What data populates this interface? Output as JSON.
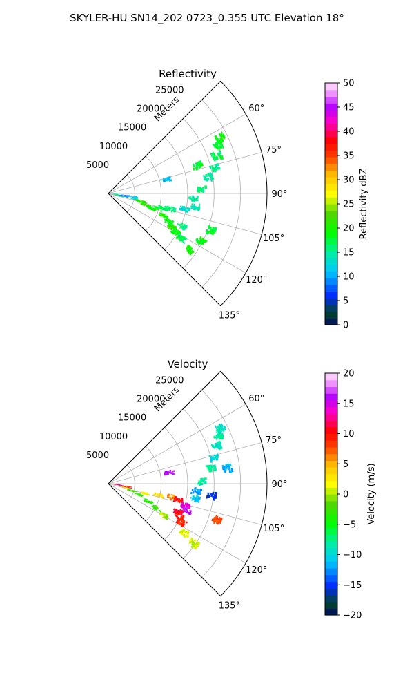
{
  "figure": {
    "suptitle": "SKYLER-HU  SN14_202  0723_0.355 UTC Elevation 18°"
  },
  "chart_data": [
    {
      "type": "polar-sector-heatmap",
      "title": "Reflectivity",
      "radial_axis_label": "Meters",
      "radial_ticks": [
        "5000",
        "10000",
        "15000",
        "20000",
        "25000"
      ],
      "radial_range": [
        0,
        30000
      ],
      "angle_ticks": [
        "60°",
        "75°",
        "90°",
        "105°",
        "120°",
        "135°"
      ],
      "angle_range_deg": [
        45,
        135
      ],
      "grid": true,
      "colorbar": {
        "label": "Reflectivity dBZ",
        "range": [
          0,
          50
        ],
        "ticks": [
          "0",
          "5",
          "10",
          "15",
          "20",
          "25",
          "30",
          "35",
          "40",
          "45",
          "50"
        ]
      },
      "cells": [
        {
          "az": 95,
          "r": 1200,
          "v": 15
        },
        {
          "az": 98,
          "r": 1500,
          "v": 14
        },
        {
          "az": 101,
          "r": 1800,
          "v": 16
        },
        {
          "az": 96,
          "r": 3200,
          "v": 8
        },
        {
          "az": 99,
          "r": 2800,
          "v": 9
        },
        {
          "az": 97,
          "r": 4500,
          "v": 12
        },
        {
          "az": 101,
          "r": 5000,
          "v": 13
        },
        {
          "az": 103,
          "r": 6000,
          "v": 21
        },
        {
          "az": 105,
          "r": 6500,
          "v": 20
        },
        {
          "az": 107,
          "r": 7500,
          "v": 22
        },
        {
          "az": 108,
          "r": 8500,
          "v": 19
        },
        {
          "az": 106,
          "r": 9500,
          "v": 18
        },
        {
          "az": 104,
          "r": 10500,
          "v": 17
        },
        {
          "az": 103,
          "r": 12000,
          "v": 16
        },
        {
          "az": 111,
          "r": 11000,
          "v": 20
        },
        {
          "az": 114,
          "r": 12500,
          "v": 18
        },
        {
          "az": 117,
          "r": 13500,
          "v": 21
        },
        {
          "az": 119,
          "r": 14500,
          "v": 19
        },
        {
          "az": 121,
          "r": 16000,
          "v": 17
        },
        {
          "az": 113,
          "r": 15000,
          "v": 16
        },
        {
          "az": 101,
          "r": 14500,
          "v": 13
        },
        {
          "az": 98,
          "r": 16500,
          "v": 14
        },
        {
          "az": 93,
          "r": 16000,
          "v": 15
        },
        {
          "az": 87,
          "r": 17500,
          "v": 16
        },
        {
          "az": 80,
          "r": 19000,
          "v": 15
        },
        {
          "az": 76,
          "r": 20500,
          "v": 16
        },
        {
          "az": 70,
          "r": 21500,
          "v": 17
        },
        {
          "az": 66,
          "r": 22500,
          "v": 18
        },
        {
          "az": 63,
          "r": 23500,
          "v": 19
        },
        {
          "az": 72,
          "r": 17500,
          "v": 18
        },
        {
          "az": 124,
          "r": 18500,
          "v": 20
        },
        {
          "az": 116,
          "r": 19500,
          "v": 19
        },
        {
          "az": 109,
          "r": 20500,
          "v": 18
        },
        {
          "az": 76,
          "r": 11000,
          "v": 11
        }
      ]
    },
    {
      "type": "polar-sector-heatmap",
      "title": "Velocity",
      "radial_axis_label": "Meters",
      "radial_ticks": [
        "5000",
        "10000",
        "15000",
        "20000",
        "25000"
      ],
      "radial_range": [
        0,
        30000
      ],
      "angle_ticks": [
        "60°",
        "75°",
        "90°",
        "105°",
        "120°",
        "135°"
      ],
      "angle_range_deg": [
        45,
        135
      ],
      "grid": true,
      "colorbar": {
        "label": "Velocity (m/s)",
        "range": [
          -20,
          20
        ],
        "ticks": [
          "−20",
          "−15",
          "−10",
          "−5",
          "0",
          "5",
          "10",
          "15",
          "20"
        ]
      },
      "cells": [
        {
          "az": 95,
          "r": 1500,
          "v": 11
        },
        {
          "az": 98,
          "r": 2000,
          "v": 13
        },
        {
          "az": 99,
          "r": 3500,
          "v": 9
        },
        {
          "az": 103,
          "r": 3000,
          "v": 1
        },
        {
          "az": 106,
          "r": 4500,
          "v": -2
        },
        {
          "az": 109,
          "r": 6000,
          "v": -3
        },
        {
          "az": 113,
          "r": 8000,
          "v": -4
        },
        {
          "az": 116,
          "r": 10000,
          "v": -3
        },
        {
          "az": 119,
          "r": 12000,
          "v": 0
        },
        {
          "az": 104,
          "r": 7000,
          "v": 2
        },
        {
          "az": 102,
          "r": 9500,
          "v": 3
        },
        {
          "az": 101,
          "r": 12000,
          "v": 6
        },
        {
          "az": 102,
          "r": 13500,
          "v": 10
        },
        {
          "az": 105,
          "r": 15000,
          "v": 14
        },
        {
          "az": 108,
          "r": 15500,
          "v": 16
        },
        {
          "az": 111,
          "r": 14000,
          "v": 11
        },
        {
          "az": 114,
          "r": 14500,
          "v": 10
        },
        {
          "az": 117,
          "r": 15500,
          "v": 9
        },
        {
          "az": 122,
          "r": 17000,
          "v": 1
        },
        {
          "az": 99,
          "r": 16500,
          "v": -11
        },
        {
          "az": 94,
          "r": 16500,
          "v": -12
        },
        {
          "az": 88,
          "r": 17500,
          "v": -8
        },
        {
          "az": 81,
          "r": 19500,
          "v": -8
        },
        {
          "az": 76,
          "r": 20500,
          "v": -10
        },
        {
          "az": 70,
          "r": 21500,
          "v": -9
        },
        {
          "az": 66,
          "r": 22500,
          "v": -8
        },
        {
          "az": 63,
          "r": 23500,
          "v": -9
        },
        {
          "az": 82,
          "r": 22500,
          "v": -12
        },
        {
          "az": 79,
          "r": 11500,
          "v": 16
        },
        {
          "az": 96,
          "r": 19500,
          "v": -15
        },
        {
          "az": 108,
          "r": 21500,
          "v": 8
        },
        {
          "az": 124,
          "r": 19500,
          "v": 1
        }
      ]
    }
  ]
}
